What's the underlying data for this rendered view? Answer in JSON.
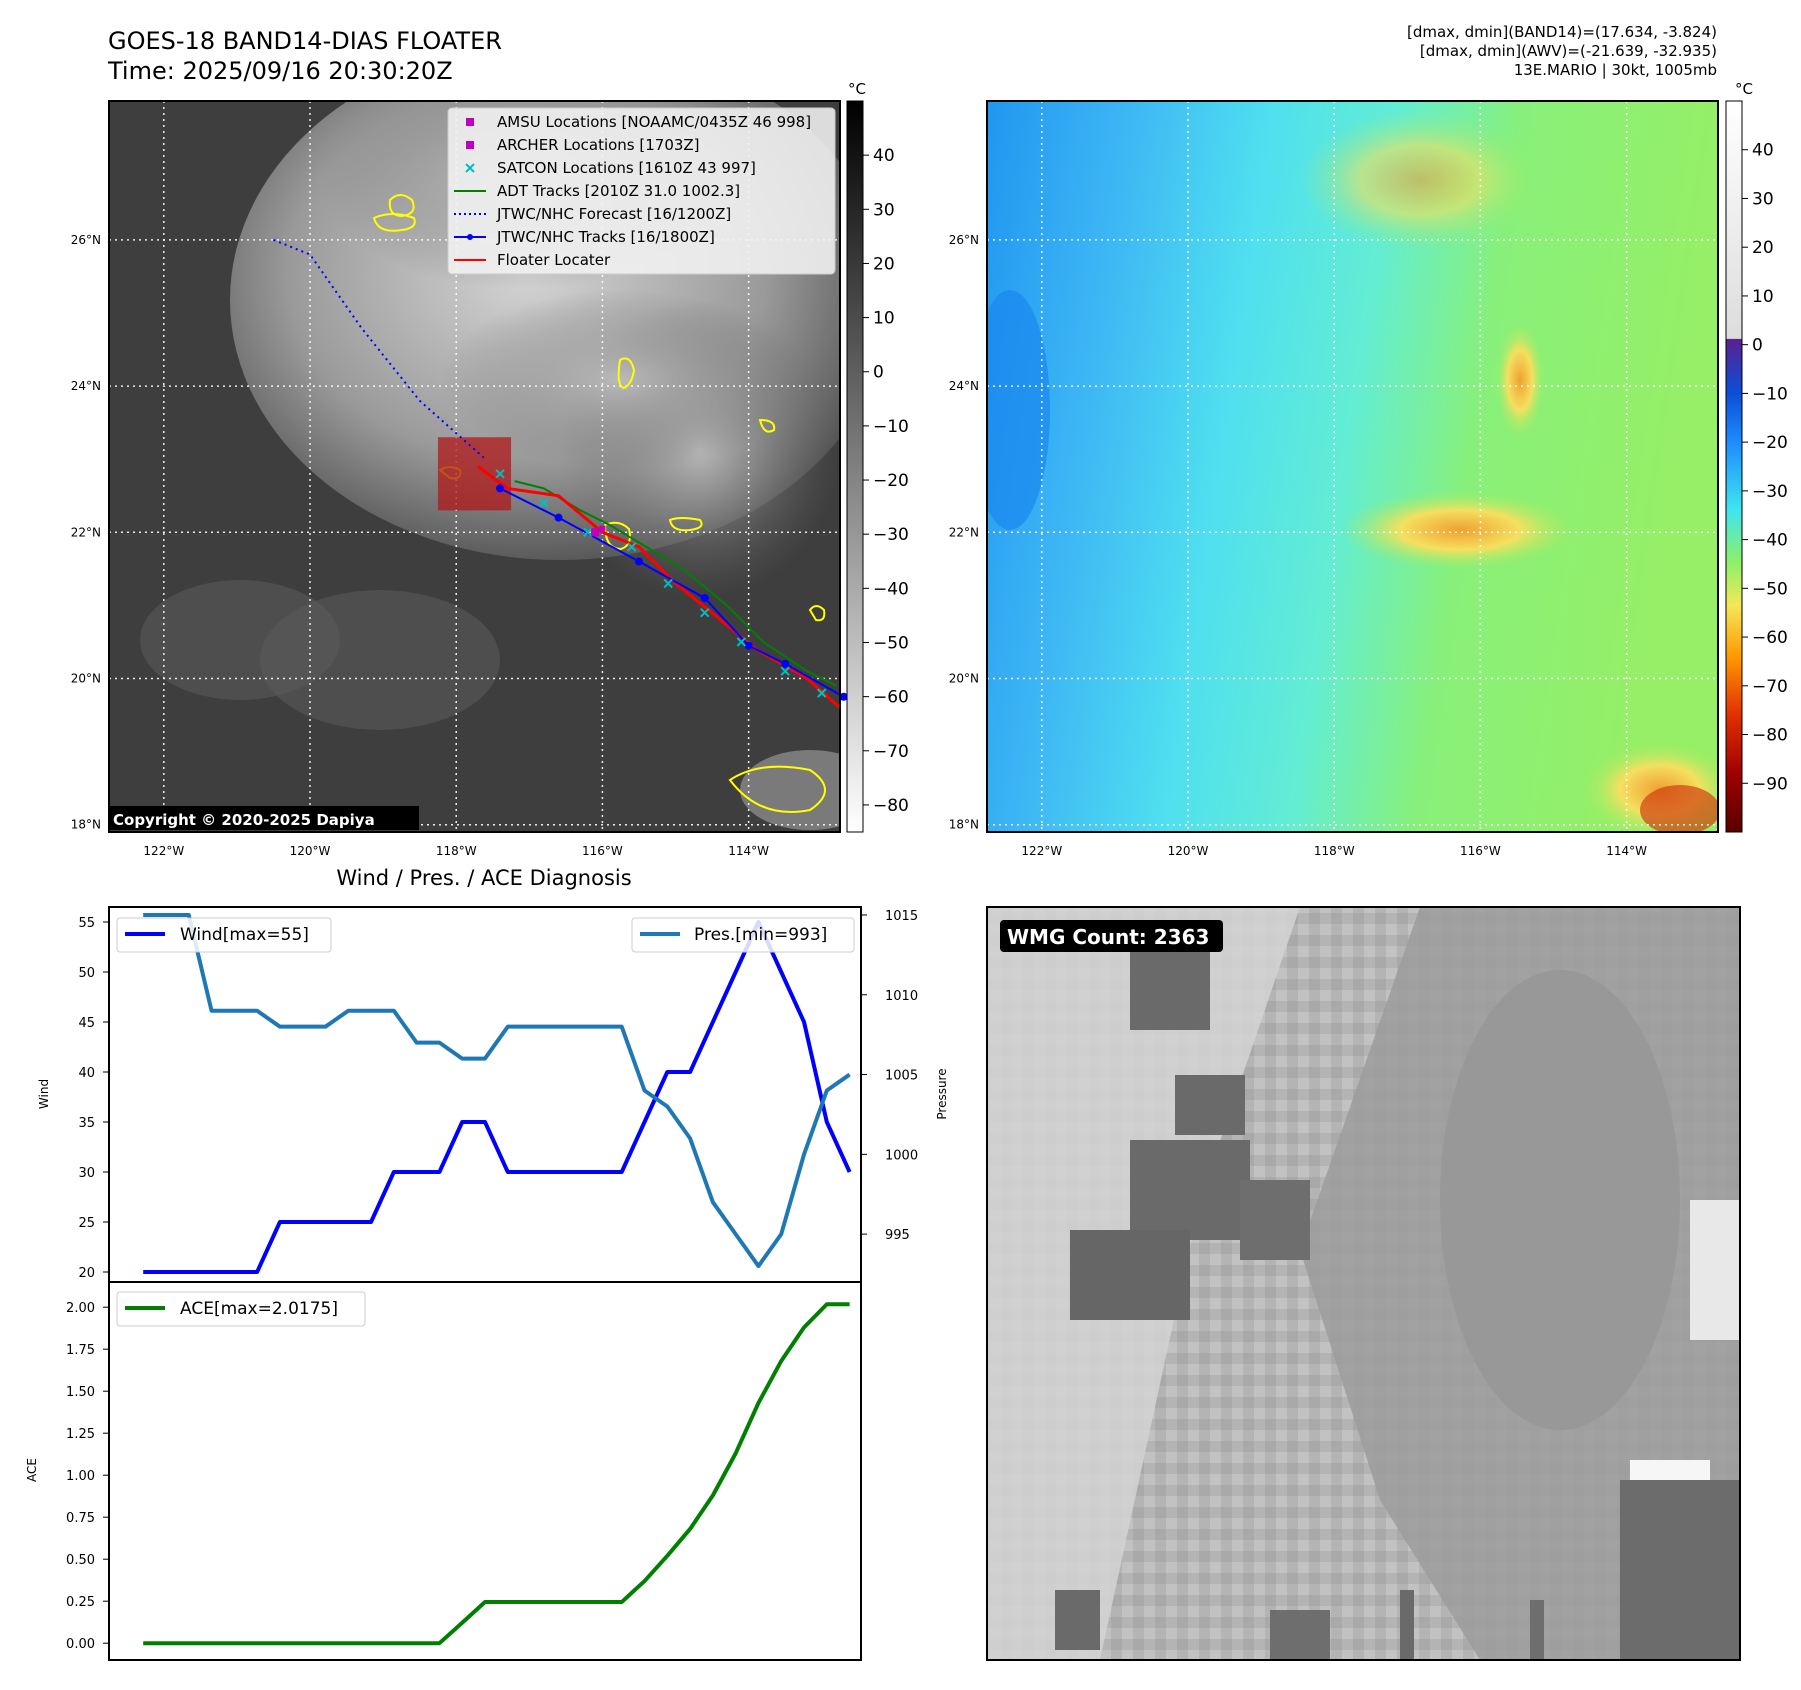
{
  "header": {
    "title": "GOES-18 BAND14-DIAS FLOATER",
    "time": "Time: 2025/09/16 20:30:20Z",
    "info": [
      "[dmax, dmin](BAND14)=(17.634, -3.824)",
      "[dmax, dmin](AWV)=(-21.639, -32.935)",
      "13E.MARIO | 30kt, 1005mb"
    ]
  },
  "colors": {
    "wind": "#0000ff",
    "pressure": "#1f77b4",
    "ace": "#008000",
    "adt": "#008000",
    "forecast": "#0000ff",
    "tracks": "#0000ff",
    "floater": "#ff0000",
    "amsu": "#c000c0",
    "archer": "#c000c0",
    "satcon": "#00bfbf",
    "contour": "#ffff00"
  },
  "map": {
    "lon_range": [
      -122.75,
      -112.75
    ],
    "lat_range": [
      17.9,
      27.9
    ],
    "lon_ticks": [
      "122°W",
      "120°W",
      "118°W",
      "116°W",
      "114°W"
    ],
    "lat_ticks": [
      "18°N",
      "20°N",
      "22°N",
      "24°N",
      "26°N"
    ],
    "copyright": "Copyright © 2020-2025 Dapiya",
    "legend": [
      {
        "label": "AMSU Locations [NOAAMC/0435Z 46 998]",
        "marker": "square",
        "color_key": "amsu"
      },
      {
        "label": "ARCHER Locations [1703Z]",
        "marker": "square",
        "color_key": "archer"
      },
      {
        "label": "SATCON Locations [1610Z 43 997]",
        "marker": "x",
        "color_key": "satcon"
      },
      {
        "label": "ADT Tracks [2010Z 31.0 1002.3]",
        "marker": "line",
        "color_key": "adt"
      },
      {
        "label": "JTWC/NHC Forecast [16/1200Z]",
        "marker": "dotted",
        "color_key": "forecast"
      },
      {
        "label": "JTWC/NHC Tracks [16/1800Z]",
        "marker": "line-dot",
        "color_key": "tracks"
      },
      {
        "label": "Floater Locater",
        "marker": "line",
        "color_key": "floater"
      }
    ],
    "forecast_track": [
      [
        -120.5,
        26.0
      ],
      [
        -120.0,
        25.8
      ],
      [
        -119.3,
        24.8
      ],
      [
        -118.5,
        23.8
      ],
      [
        -117.6,
        23.0
      ]
    ],
    "best_track": [
      [
        -112.7,
        19.75
      ],
      [
        -113.5,
        20.2
      ],
      [
        -114.0,
        20.45
      ],
      [
        -114.6,
        21.1
      ],
      [
        -115.5,
        21.6
      ],
      [
        -116.6,
        22.2
      ],
      [
        -117.4,
        22.6
      ]
    ],
    "adt_track": [
      [
        -117.2,
        22.7
      ],
      [
        -116.8,
        22.6
      ],
      [
        -116.3,
        22.3
      ],
      [
        -115.9,
        22.1
      ],
      [
        -115.4,
        21.8
      ],
      [
        -114.9,
        21.5
      ],
      [
        -114.3,
        21.0
      ],
      [
        -113.8,
        20.5
      ],
      [
        -113.2,
        20.1
      ],
      [
        -112.8,
        19.9
      ]
    ],
    "floater_track": [
      [
        -117.7,
        22.9
      ],
      [
        -117.3,
        22.6
      ],
      [
        -116.6,
        22.5
      ],
      [
        -116.0,
        22.0
      ],
      [
        -115.5,
        21.8
      ],
      [
        -115.0,
        21.3
      ],
      [
        -114.5,
        20.9
      ],
      [
        -113.9,
        20.4
      ],
      [
        -113.2,
        20.0
      ],
      [
        -112.75,
        19.6
      ]
    ],
    "floater_box": {
      "lon": [
        -118.25,
        -117.25
      ],
      "lat": [
        22.3,
        23.3
      ]
    },
    "satcon_points": [
      [
        -117.4,
        22.8
      ],
      [
        -116.8,
        22.4
      ],
      [
        -116.2,
        22.0
      ],
      [
        -115.6,
        21.8
      ],
      [
        -115.1,
        21.3
      ],
      [
        -114.6,
        20.9
      ],
      [
        -114.1,
        20.5
      ],
      [
        -113.5,
        20.1
      ],
      [
        -113.0,
        19.8
      ]
    ],
    "amsu_point": [
      -116.1,
      22.0
    ],
    "archer_point": [
      -116.0,
      22.05
    ]
  },
  "colorbar_left": {
    "unit": "°C",
    "range": [
      -85,
      50
    ],
    "ticks": [
      "40",
      "30",
      "20",
      "10",
      "0",
      "−10",
      "−20",
      "−30",
      "−40",
      "−50",
      "−60",
      "−70",
      "−80"
    ],
    "tick_values": [
      40,
      30,
      20,
      10,
      0,
      -10,
      -20,
      -30,
      -40,
      -50,
      -60,
      -70,
      -80
    ]
  },
  "colorbar_right": {
    "unit": "°C",
    "range": [
      -100,
      50
    ],
    "ticks": [
      "40",
      "30",
      "20",
      "10",
      "0",
      "−10",
      "−20",
      "−30",
      "−40",
      "−50",
      "−60",
      "−70",
      "−80",
      "−90"
    ],
    "tick_values": [
      40,
      30,
      20,
      10,
      0,
      -10,
      -20,
      -30,
      -40,
      -50,
      -60,
      -70,
      -80,
      -90
    ]
  },
  "wmg": {
    "label": "WMG Count: 2363"
  },
  "chart_data": [
    {
      "type": "line",
      "title": "Wind / Pres. / ACE Diagnosis",
      "ylabel": "Wind",
      "ylabel_right": "Pressure",
      "ylim": [
        19,
        56.5
      ],
      "ylim_right": [
        992,
        1015.5
      ],
      "yticks": [
        20,
        25,
        30,
        35,
        40,
        45,
        50,
        55
      ],
      "yticks_right": [
        995,
        1000,
        1005,
        1010,
        1015
      ],
      "x": [
        0,
        1,
        2,
        3,
        4,
        5,
        6,
        7,
        8,
        9,
        10,
        11,
        12,
        13,
        14,
        15,
        16,
        17,
        18,
        19,
        20,
        21,
        22,
        23,
        24,
        25,
        26,
        27,
        28,
        29,
        30,
        31
      ],
      "series": [
        {
          "name": "Wind[max=55]",
          "axis": "left",
          "values": [
            20,
            20,
            20,
            20,
            20,
            20,
            25,
            25,
            25,
            25,
            25,
            30,
            30,
            30,
            35,
            35,
            30,
            30,
            30,
            30,
            30,
            30,
            35,
            40,
            40,
            45,
            50,
            55,
            50,
            45,
            35,
            30
          ]
        },
        {
          "name": "Pres.[min=993]",
          "axis": "right",
          "values": [
            1015,
            1015,
            1015,
            1009,
            1009,
            1009,
            1008,
            1008,
            1008,
            1009,
            1009,
            1009,
            1007,
            1007,
            1006,
            1006,
            1008,
            1008,
            1008,
            1008,
            1008,
            1008,
            1004,
            1003,
            1001,
            997,
            995,
            993,
            995,
            1000,
            1004,
            1005
          ]
        }
      ]
    },
    {
      "type": "line",
      "ylabel": "ACE",
      "ylim": [
        -0.1,
        2.15
      ],
      "yticks": [
        "0.00",
        "0.25",
        "0.50",
        "0.75",
        "1.00",
        "1.25",
        "1.50",
        "1.75",
        "2.00"
      ],
      "ytick_values": [
        0,
        0.25,
        0.5,
        0.75,
        1.0,
        1.25,
        1.5,
        1.75,
        2.0
      ],
      "x": [
        0,
        1,
        2,
        3,
        4,
        5,
        6,
        7,
        8,
        9,
        10,
        11,
        12,
        13,
        14,
        15,
        16,
        17,
        18,
        19,
        20,
        21,
        22,
        23,
        24,
        25,
        26,
        27,
        28,
        29,
        30,
        31
      ],
      "series": [
        {
          "name": "ACE[max=2.0175]",
          "values": [
            0,
            0,
            0,
            0,
            0,
            0,
            0,
            0,
            0,
            0,
            0,
            0,
            0,
            0,
            0.122,
            0.245,
            0.245,
            0.245,
            0.245,
            0.245,
            0.245,
            0.245,
            0.37,
            0.52,
            0.68,
            0.88,
            1.13,
            1.43,
            1.68,
            1.88,
            2.0175,
            2.0175
          ]
        }
      ]
    }
  ]
}
